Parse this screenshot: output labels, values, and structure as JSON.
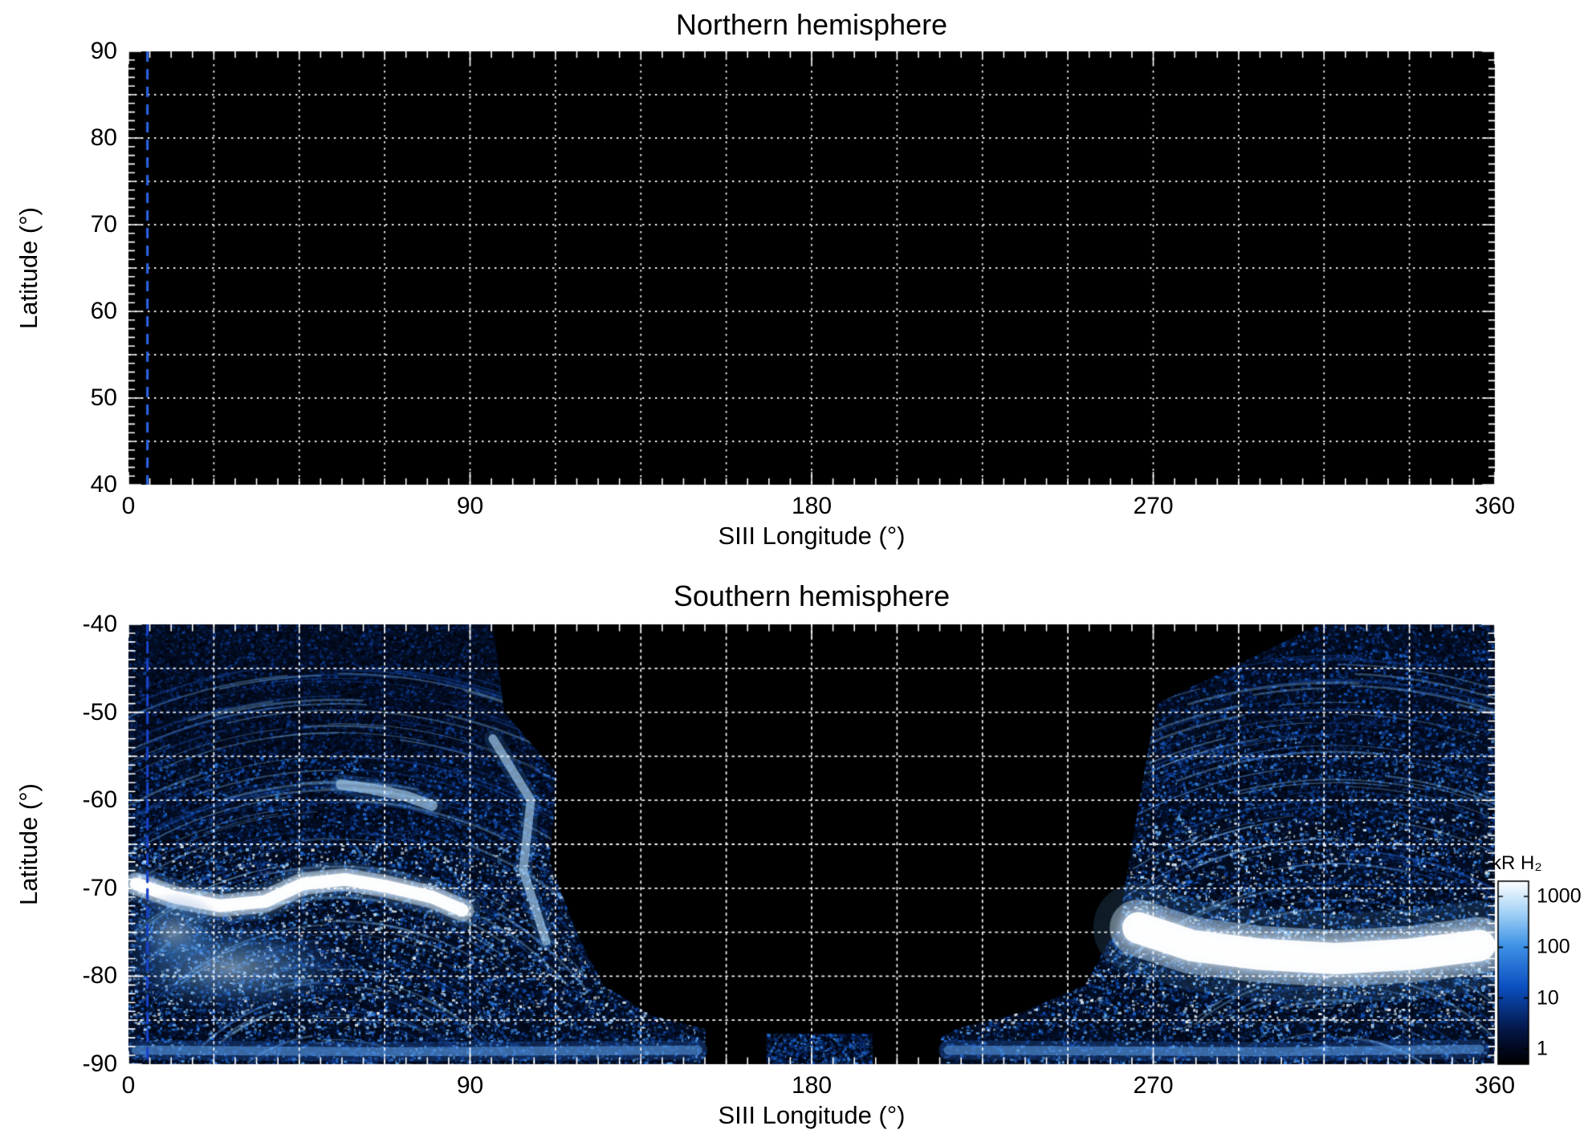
{
  "figure": {
    "background": "#ffffff",
    "text_color": "#000000"
  },
  "chart_data": [
    {
      "type": "heatmap",
      "hemisphere": "north",
      "title": "Northern hemisphere",
      "xlabel": "SIII Longitude (°)",
      "ylabel": "Latitude (°)",
      "xlim": [
        0,
        360
      ],
      "ylim": [
        40,
        90
      ],
      "xticks": [
        0,
        90,
        180,
        270,
        360
      ],
      "yticks": [
        90,
        80,
        70,
        60,
        50,
        40
      ],
      "x_minor_tick": 5.625,
      "y_minor_tick": 1,
      "grid": {
        "x_spacing": 22.5,
        "y_spacing": 5,
        "style": "dotted",
        "color": "#ffffff"
      },
      "background": "#000000",
      "reference_line": {
        "x": 5,
        "style": "dashed",
        "color": "#2a62e0"
      },
      "coverage": [],
      "features": []
    },
    {
      "type": "heatmap",
      "hemisphere": "south",
      "title": "Southern hemisphere",
      "xlabel": "SIII Longitude (°)",
      "ylabel": "Latitude (°)",
      "xlim": [
        0,
        360
      ],
      "ylim": [
        -90,
        -40
      ],
      "xticks": [
        0,
        90,
        180,
        270,
        360
      ],
      "yticks": [
        -40,
        -50,
        -60,
        -70,
        -80,
        -90
      ],
      "x_minor_tick": 5.625,
      "y_minor_tick": 1,
      "grid": {
        "x_spacing": 22.5,
        "y_spacing": 5,
        "style": "dotted",
        "color": "#ffffff"
      },
      "background": "#000000",
      "reference_line": {
        "x": 5,
        "style": "dashed",
        "color": "#1742c8"
      },
      "coverage": [
        {
          "name": "west-coverage",
          "points": [
            [
              0,
              -40
            ],
            [
              96,
              -40
            ],
            [
              99,
              -50
            ],
            [
              113,
              -57
            ],
            [
              111,
              -67
            ],
            [
              118,
              -75
            ],
            [
              125,
              -81
            ],
            [
              138,
              -84.5
            ],
            [
              152,
              -86
            ],
            [
              152,
              -90
            ],
            [
              0,
              -90
            ]
          ],
          "speckle": 40000,
          "density": [
            {
              "lat": [
                -40,
                -55
              ],
              "w": 0.38
            },
            {
              "lat": [
                -55,
                -65
              ],
              "w": 0.62
            },
            {
              "lat": [
                -65,
                -86
              ],
              "w": 1.0
            },
            {
              "lat": [
                -86,
                -90
              ],
              "w": 0.8
            }
          ],
          "fan": {
            "center": [
              55,
              -104
            ],
            "r0": 14,
            "r1": 60,
            "count": 180
          }
        },
        {
          "name": "bottom-patch",
          "points": [
            [
              168,
              -86.5
            ],
            [
              196,
              -86.5
            ],
            [
              196,
              -90
            ],
            [
              168,
              -90
            ]
          ],
          "speckle": 1400,
          "density": [
            {
              "lat": [
                -86.5,
                -90
              ],
              "w": 0.7
            }
          ]
        },
        {
          "name": "east-coverage",
          "points": [
            [
              360,
              -40
            ],
            [
              314,
              -40
            ],
            [
              271,
              -49
            ],
            [
              268,
              -56
            ],
            [
              264,
              -66
            ],
            [
              261,
              -74
            ],
            [
              252,
              -81
            ],
            [
              236,
              -84
            ],
            [
              218,
              -86
            ],
            [
              214,
              -87
            ],
            [
              214,
              -90
            ],
            [
              360,
              -90
            ]
          ],
          "speckle": 36000,
          "density": [
            {
              "lat": [
                -40,
                -52
              ],
              "w": 0.55
            },
            {
              "lat": [
                -52,
                -62
              ],
              "w": 0.7
            },
            {
              "lat": [
                -62,
                -86
              ],
              "w": 1.0
            },
            {
              "lat": [
                -86,
                -90
              ],
              "w": 0.8
            }
          ],
          "fan": {
            "center": [
              318,
              -105
            ],
            "r0": 16,
            "r1": 62,
            "count": 160
          }
        }
      ],
      "features": [
        {
          "name": "main-auroral-arc-west",
          "intensity": "bright",
          "width_deg": 1.6,
          "points": [
            [
              2,
              -69.5
            ],
            [
              12,
              -71
            ],
            [
              24,
              -72
            ],
            [
              36,
              -71.5
            ],
            [
              46,
              -69.5
            ],
            [
              57,
              -69
            ],
            [
              68,
              -69.8
            ],
            [
              80,
              -71
            ],
            [
              88,
              -72.5
            ]
          ]
        },
        {
          "name": "secondary-arc-west",
          "intensity": "medium",
          "width_deg": 1.1,
          "points": [
            [
              56,
              -58.2
            ],
            [
              64,
              -58.7
            ],
            [
              73,
              -59.5
            ],
            [
              80,
              -60.6
            ]
          ]
        },
        {
          "name": "diffuse-glow-west",
          "intensity": "medium",
          "center": [
            27,
            -79
          ],
          "rx_deg": 34,
          "ry_deg": 5.5
        },
        {
          "name": "diffuse-glow-west-2",
          "intensity": "medium",
          "center": [
            12,
            -75
          ],
          "rx_deg": 14,
          "ry_deg": 4.5
        },
        {
          "name": "coverage-edge-arc-west",
          "intensity": "medium",
          "width_deg": 0.9,
          "points": [
            [
              96,
              -53
            ],
            [
              106,
              -60
            ],
            [
              104,
              -68
            ],
            [
              110,
              -76
            ]
          ]
        },
        {
          "name": "main-emission-band-east",
          "intensity": "very-bright",
          "width_deg": 3.4,
          "points": [
            [
              266,
              -74.5
            ],
            [
              280,
              -76.5
            ],
            [
              298,
              -77.5
            ],
            [
              318,
              -78
            ],
            [
              338,
              -77.5
            ],
            [
              356,
              -76.5
            ]
          ]
        },
        {
          "name": "bottom-band-west",
          "intensity": "low",
          "width_deg": 1.3,
          "points": [
            [
              2,
              -88.4
            ],
            [
              70,
              -88.6
            ],
            [
              150,
              -88.4
            ]
          ]
        },
        {
          "name": "bottom-band-east",
          "intensity": "low",
          "width_deg": 1.3,
          "points": [
            [
              216,
              -88.4
            ],
            [
              300,
              -88.6
            ],
            [
              356,
              -88.3
            ]
          ]
        }
      ]
    }
  ],
  "colorbar": {
    "label": "kR H₂",
    "scale": "log",
    "ticks": [
      1000,
      100,
      10,
      1
    ],
    "range": [
      0.5,
      2000
    ],
    "gradient": [
      [
        "0",
        "#000000"
      ],
      [
        "0.18",
        "#041543"
      ],
      [
        "0.42",
        "#0b4fc0"
      ],
      [
        "0.65",
        "#3f92e6"
      ],
      [
        "0.82",
        "#9fd0f6"
      ],
      [
        "1",
        "#ffffff"
      ]
    ]
  }
}
